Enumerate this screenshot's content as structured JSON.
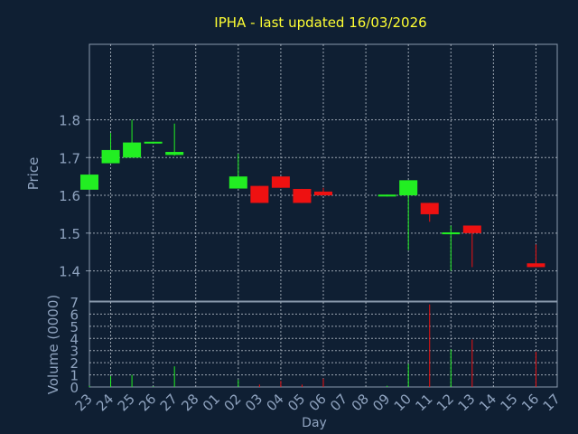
{
  "chart_data": {
    "type": "candlestick",
    "title": "IPHA - last updated 16/03/2026",
    "xlabel": "Day",
    "ylabel": "Price",
    "volume_label": "Volume (0000)",
    "grid": true,
    "price_ylim": [
      1.32,
      2.0
    ],
    "price_ticks": [
      "1.4",
      "1.5",
      "1.6",
      "1.7",
      "1.8"
    ],
    "volume_ylim": [
      0,
      7
    ],
    "volume_ticks": [
      "0",
      "1",
      "2",
      "3",
      "4",
      "5",
      "6",
      "7"
    ],
    "days": [
      "23",
      "24",
      "25",
      "26",
      "27",
      "28",
      "01",
      "02",
      "03",
      "04",
      "05",
      "06",
      "07",
      "08",
      "09",
      "10",
      "11",
      "12",
      "13",
      "14",
      "15",
      "16",
      "17"
    ],
    "candles": [
      {
        "day": "23",
        "open": 1.615,
        "high": 1.655,
        "low": 1.615,
        "close": 1.655,
        "volume": 0.1
      },
      {
        "day": "24",
        "open": 1.685,
        "high": 1.765,
        "low": 1.685,
        "close": 1.72,
        "volume": 0.9
      },
      {
        "day": "25",
        "open": 1.7,
        "high": 1.8,
        "low": 1.7,
        "close": 1.74,
        "volume": 1.0
      },
      {
        "day": "26",
        "open": 1.738,
        "high": 1.742,
        "low": 1.738,
        "close": 1.742,
        "volume": 0.05
      },
      {
        "day": "27",
        "open": 1.707,
        "high": 1.79,
        "low": 1.705,
        "close": 1.715,
        "volume": 1.7
      },
      {
        "day": "02",
        "open": 1.618,
        "high": 1.71,
        "low": 1.618,
        "close": 1.65,
        "volume": 0.6
      },
      {
        "day": "03",
        "open": 1.625,
        "high": 1.625,
        "low": 1.58,
        "close": 1.58,
        "volume": 0.2
      },
      {
        "day": "04",
        "open": 1.65,
        "high": 1.65,
        "low": 1.62,
        "close": 1.62,
        "volume": 0.5
      },
      {
        "day": "05",
        "open": 1.617,
        "high": 1.617,
        "low": 1.58,
        "close": 1.58,
        "volume": 0.2
      },
      {
        "day": "06",
        "open": 1.61,
        "high": 1.62,
        "low": 1.6,
        "close": 1.6,
        "volume": 0.7
      },
      {
        "day": "09",
        "open": 1.597,
        "high": 1.602,
        "low": 1.597,
        "close": 1.602,
        "volume": 0.1
      },
      {
        "day": "10",
        "open": 1.6,
        "high": 1.64,
        "low": 1.455,
        "close": 1.64,
        "volume": 1.9
      },
      {
        "day": "11",
        "open": 1.58,
        "high": 1.58,
        "low": 1.53,
        "close": 1.55,
        "volume": 6.8
      },
      {
        "day": "12",
        "open": 1.497,
        "high": 1.52,
        "low": 1.4,
        "close": 1.502,
        "volume": 3.1
      },
      {
        "day": "13",
        "open": 1.52,
        "high": 1.52,
        "low": 1.41,
        "close": 1.5,
        "volume": 3.9
      },
      {
        "day": "16",
        "open": 1.42,
        "high": 1.47,
        "low": 1.41,
        "close": 1.41,
        "volume": 2.9
      }
    ]
  }
}
